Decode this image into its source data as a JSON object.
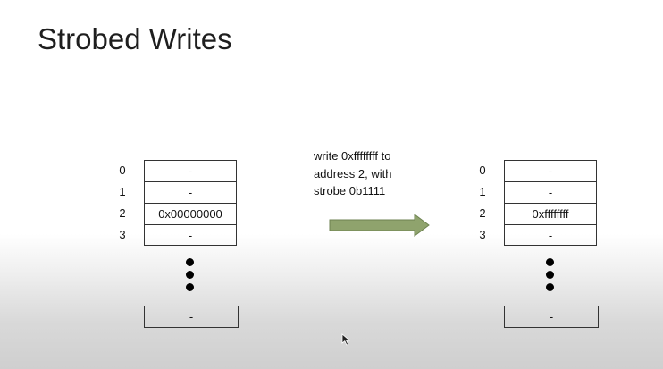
{
  "slide": {
    "title": "Strobed Writes"
  },
  "memory_before": {
    "rows": [
      {
        "index": "0",
        "value": "-"
      },
      {
        "index": "1",
        "value": "-"
      },
      {
        "index": "2",
        "value": "0x00000000"
      },
      {
        "index": "3",
        "value": "-"
      }
    ],
    "tail_value": "-"
  },
  "operation": {
    "lines": [
      "write 0xffffffff to",
      "address 2, with",
      "strobe 0b1111"
    ],
    "arrow_color": "#8fa36d",
    "arrow_stroke": "#6d8250"
  },
  "memory_after": {
    "rows": [
      {
        "index": "0",
        "value": "-"
      },
      {
        "index": "1",
        "value": "-"
      },
      {
        "index": "2",
        "value": "0xffffffff"
      },
      {
        "index": "3",
        "value": "-"
      }
    ],
    "tail_value": "-"
  },
  "icons": {
    "ellipsis": "vertical-ellipsis-icon",
    "arrow": "right-arrow-icon",
    "cursor": "mouse-cursor-icon"
  }
}
